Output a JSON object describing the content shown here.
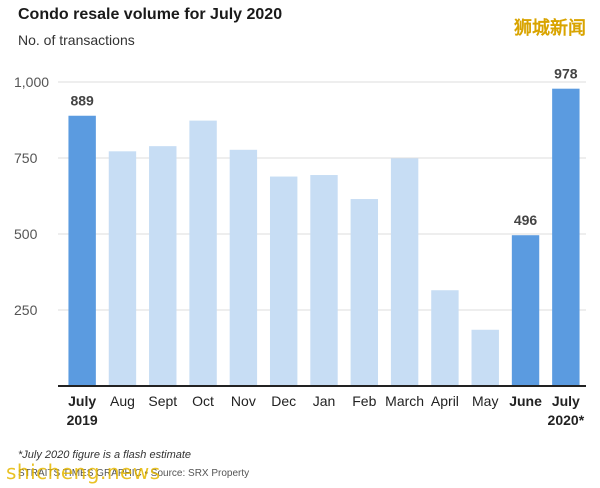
{
  "header": {
    "title": "Condo resale volume for July 2020",
    "subtitle": "No. of transactions"
  },
  "watermark": {
    "cn": "狮城新闻",
    "en": "shicheng.news"
  },
  "footer": {
    "footnote": "*July 2020 figure is a flash estimate",
    "credit": "STRAITS TIMES GRAPHIC • Source: SRX Property"
  },
  "colors": {
    "highlight": "#5b9be0",
    "muted": "#c7ddf4",
    "grid": "#dddddd",
    "axis": "#222222",
    "label": "#555555"
  },
  "chart_data": {
    "type": "bar",
    "categories": [
      "July 2019",
      "Aug",
      "Sept",
      "Oct",
      "Nov",
      "Dec",
      "Jan",
      "Feb",
      "March",
      "April",
      "May",
      "June",
      "July 2020*"
    ],
    "category_lines": [
      [
        "July",
        "2019"
      ],
      [
        "Aug"
      ],
      [
        "Sept"
      ],
      [
        "Oct"
      ],
      [
        "Nov"
      ],
      [
        "Dec"
      ],
      [
        "Jan"
      ],
      [
        "Feb"
      ],
      [
        "March"
      ],
      [
        "April"
      ],
      [
        "May"
      ],
      [
        "June"
      ],
      [
        "July",
        "2020*"
      ]
    ],
    "values": [
      889,
      772,
      789,
      873,
      777,
      689,
      694,
      615,
      749,
      315,
      185,
      496,
      978
    ],
    "highlighted": [
      0,
      11,
      12
    ],
    "bold_labels": [
      0,
      11,
      12
    ],
    "data_labels": [
      {
        "index": 0,
        "text": "889"
      },
      {
        "index": 11,
        "text": "496"
      },
      {
        "index": 12,
        "text": "978"
      }
    ],
    "yticks": [
      250,
      500,
      750,
      1000
    ],
    "ytick_labels": [
      "250",
      "500",
      "750",
      "1,000"
    ],
    "ylim": [
      0,
      1000
    ],
    "grid": true
  }
}
